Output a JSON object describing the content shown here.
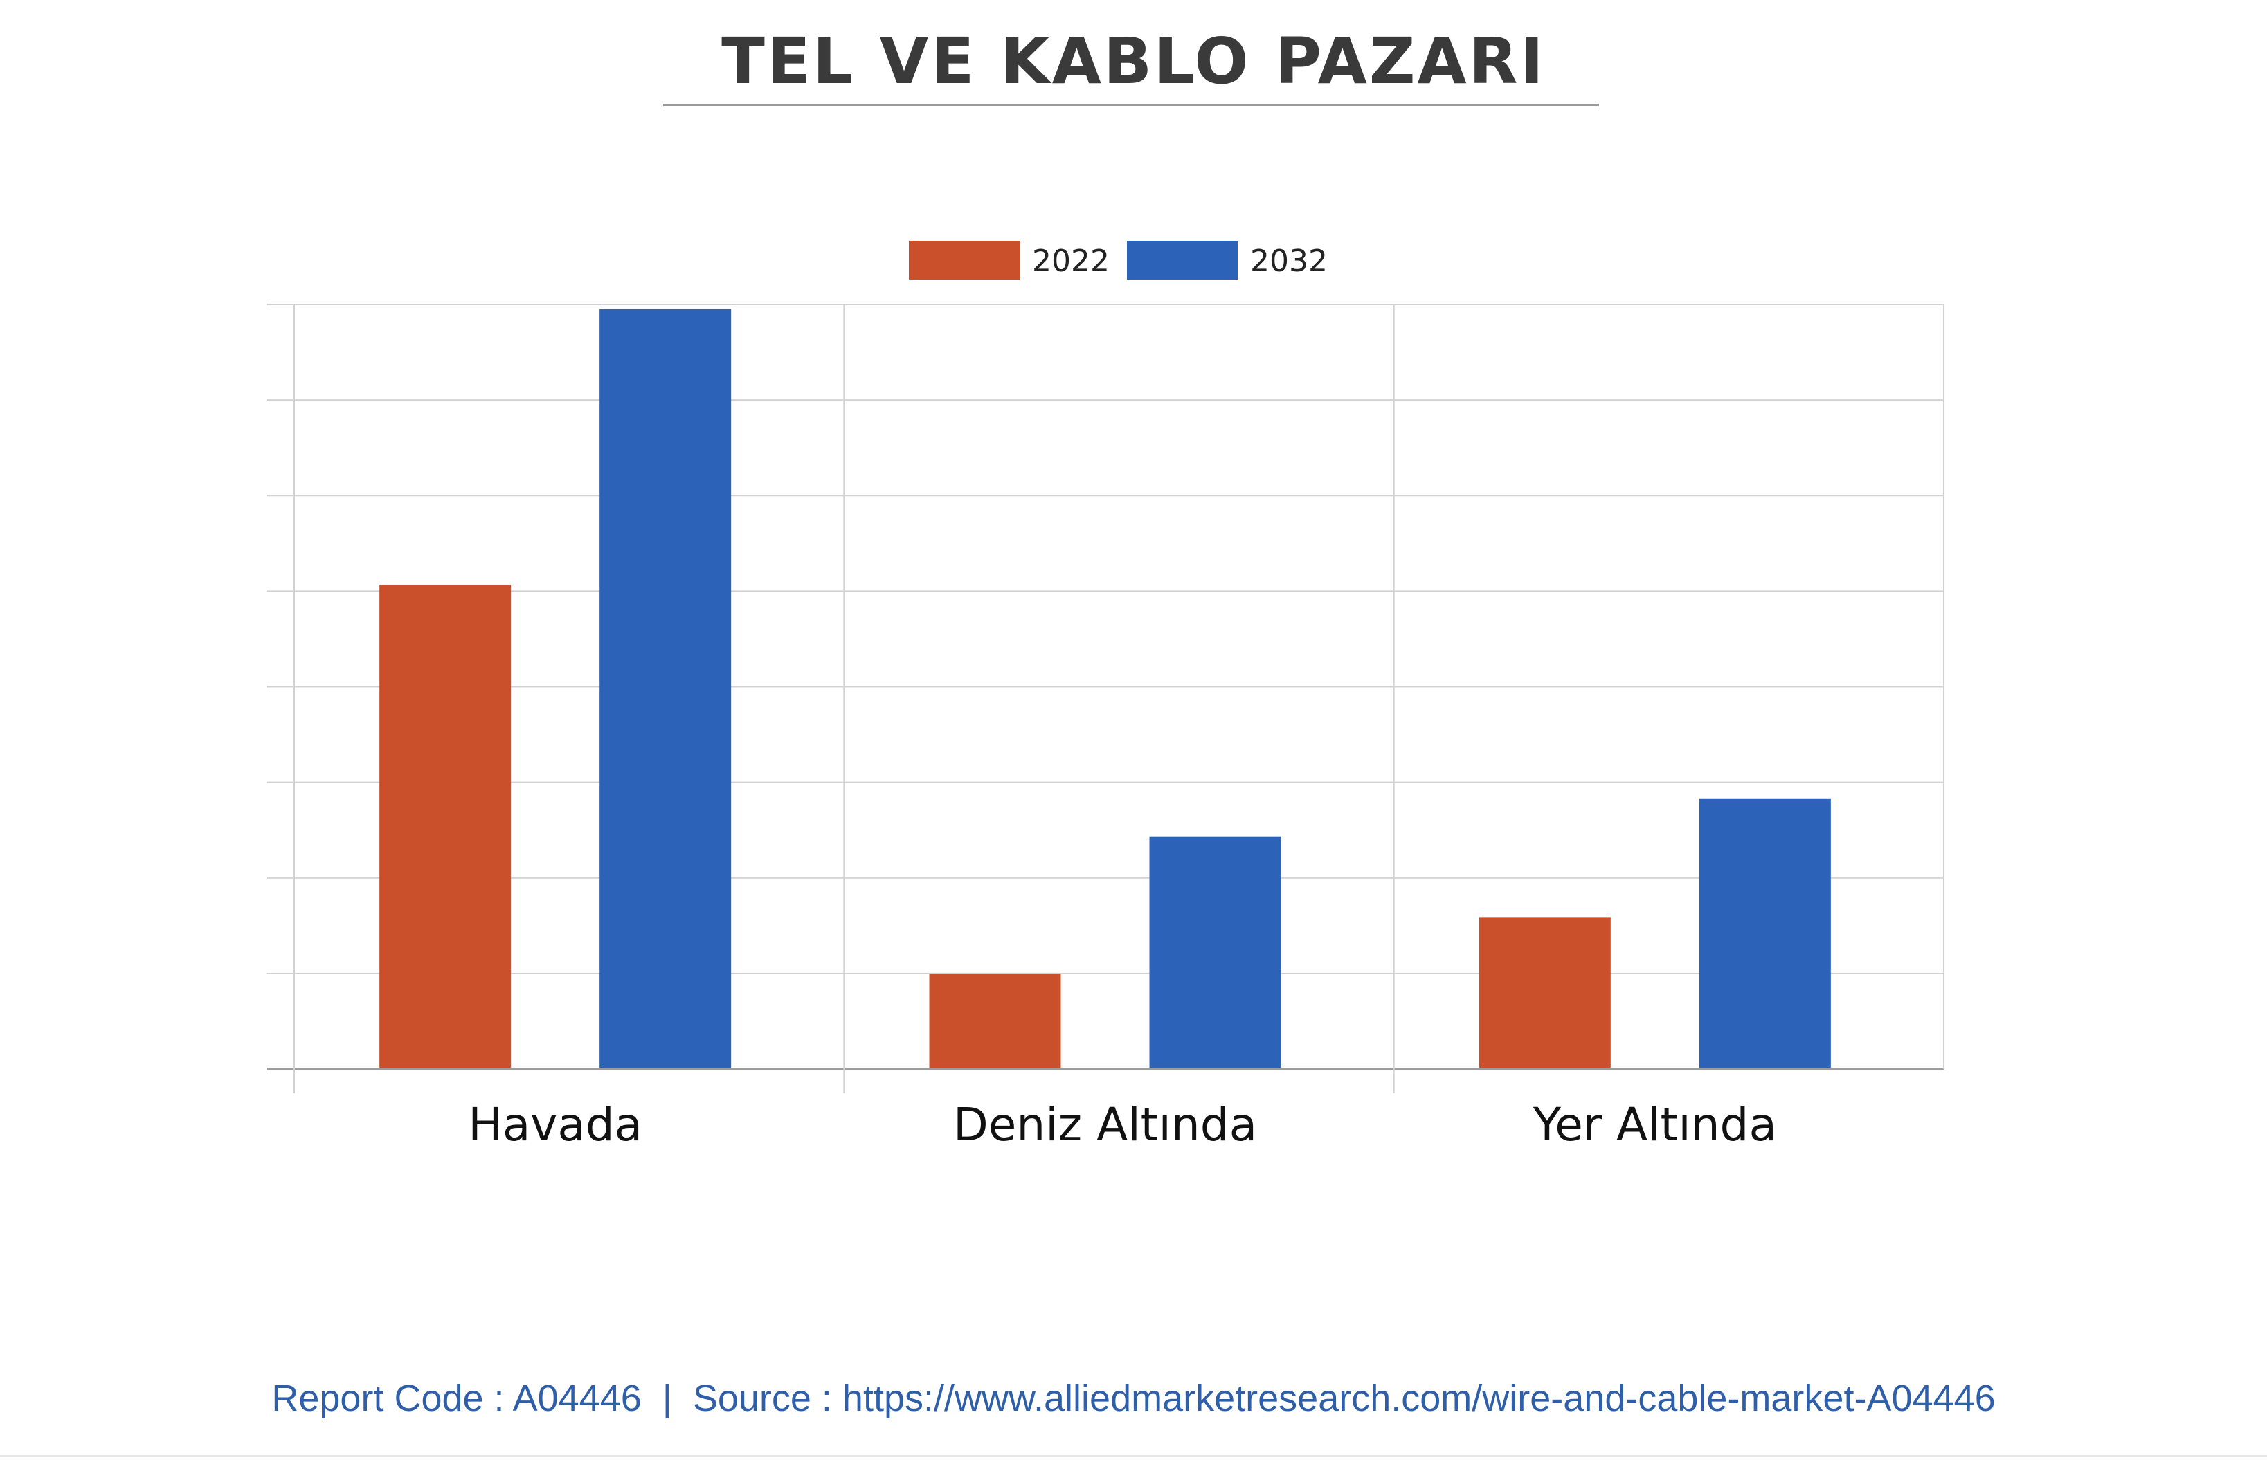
{
  "title": "TEL VE KABLO PAZARI",
  "footer": {
    "report_code": "Report Code : A04446",
    "separator": "|",
    "source": "Source : https://www.alliedmarketresearch.com/wire-and-cable-market-A04446"
  },
  "chart_data": {
    "type": "bar",
    "title": "TEL VE KABLO PAZARI",
    "xlabel": "",
    "ylabel": "",
    "categories": [
      "Havada",
      "Deniz Altında",
      "Yer Altında"
    ],
    "series": [
      {
        "name": "2022",
        "color": "#c9502b",
        "values": [
          5.1,
          1.0,
          1.6
        ]
      },
      {
        "name": "2032",
        "color": "#2d62b9",
        "values": [
          8.0,
          2.45,
          2.85
        ]
      }
    ],
    "ylim": [
      0,
      8.05
    ],
    "y_ticks": 8,
    "y_tick_labels_shown": false,
    "grid": true,
    "legend": "top-center"
  }
}
